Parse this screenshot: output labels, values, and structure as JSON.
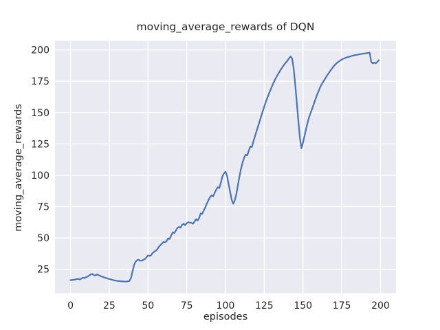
{
  "figure": {
    "title": "moving_average_rewards of DQN",
    "xlabel": "episodes",
    "ylabel": "moving_average_rewards"
  },
  "colors": {
    "figure_bg": "#FFFFFF",
    "panel_bg": "#EAEAF2",
    "grid": "#FFFFFF",
    "line": "#4C72B0",
    "text": "#262626"
  },
  "chart_data": {
    "type": "line",
    "title": "moving_average_rewards of DQN",
    "xlabel": "episodes",
    "ylabel": "moving_average_rewards",
    "grid": true,
    "legend": "none",
    "x_ticks": [
      0,
      25,
      50,
      75,
      100,
      125,
      150,
      175,
      200
    ],
    "y_ticks": [
      25,
      50,
      75,
      100,
      125,
      150,
      175,
      200
    ],
    "xlim": [
      -10,
      210
    ],
    "ylim": [
      5.9,
      207.2
    ],
    "series": [
      {
        "name": "moving_average_rewards",
        "x": [
          0,
          2,
          4,
          5,
          6,
          8,
          9,
          11,
          13,
          14,
          15,
          16,
          17,
          18,
          20,
          22,
          24,
          26,
          28,
          30,
          32,
          34,
          36,
          38,
          39,
          40,
          41,
          42,
          43,
          44,
          45,
          46,
          47,
          48,
          49,
          50,
          51,
          52,
          53,
          54,
          55,
          56,
          57,
          58,
          59,
          60,
          61,
          62,
          63,
          64,
          65,
          66,
          67,
          68,
          69,
          70,
          71,
          72,
          73,
          74,
          75,
          76,
          77,
          78,
          79,
          80,
          81,
          82,
          83,
          84,
          85,
          86,
          87,
          88,
          89,
          90,
          91,
          92,
          93,
          94,
          95,
          96,
          97,
          98,
          99,
          100,
          101,
          102,
          103,
          104,
          105,
          106,
          107,
          108,
          109,
          110,
          111,
          112,
          113,
          114,
          115,
          116,
          117,
          118,
          119,
          120,
          122,
          124,
          126,
          128,
          130,
          132,
          134,
          136,
          138,
          140,
          141,
          142,
          143,
          144,
          145,
          146,
          147,
          148,
          149,
          150,
          151,
          152,
          153,
          154,
          155,
          156,
          157,
          158,
          159,
          160,
          161,
          162,
          163,
          164,
          165,
          166,
          168,
          170,
          172,
          174,
          175,
          176,
          178,
          180,
          182,
          184,
          186,
          188,
          190,
          192,
          193,
          194,
          195,
          196,
          197,
          198,
          199
        ],
        "y": [
          16.3,
          16.6,
          17.1,
          17.3,
          16.9,
          18.3,
          18.0,
          19.2,
          20.9,
          21.3,
          20.4,
          20.1,
          20.9,
          20.4,
          19.3,
          18.4,
          17.6,
          16.9,
          16.2,
          15.8,
          15.5,
          15.3,
          15.2,
          15.6,
          18.0,
          23.0,
          28.5,
          31.0,
          32.3,
          32.6,
          31.8,
          31.9,
          32.5,
          33.2,
          34.5,
          36.0,
          35.7,
          36.2,
          38.0,
          39.0,
          39.8,
          41.0,
          43.0,
          44.2,
          45.5,
          46.9,
          46.5,
          47.5,
          49.7,
          49.2,
          52.0,
          54.5,
          53.9,
          56.0,
          58.0,
          58.8,
          58.2,
          60.5,
          61.3,
          60.2,
          61.8,
          62.5,
          62.3,
          62.0,
          61.3,
          63.0,
          65.0,
          63.9,
          66.0,
          69.5,
          69.2,
          72.0,
          74.5,
          77.5,
          80.0,
          82.5,
          84.0,
          83.2,
          86.0,
          88.5,
          90.5,
          89.8,
          94.0,
          99.0,
          101.5,
          102.8,
          99.5,
          93.0,
          86.5,
          80.5,
          77.3,
          80.0,
          85.0,
          92.0,
          99.0,
          105.0,
          110.0,
          114.0,
          116.5,
          115.8,
          119.5,
          123.0,
          122.5,
          127.0,
          131.0,
          135.0,
          143.0,
          151.0,
          158.5,
          165.0,
          171.0,
          176.5,
          181.0,
          185.0,
          188.5,
          191.5,
          193.3,
          194.8,
          193.0,
          185.0,
          172.0,
          158.0,
          143.0,
          130.0,
          121.5,
          126.0,
          131.5,
          137.0,
          142.0,
          146.5,
          150.0,
          153.5,
          157.0,
          160.5,
          164.0,
          167.0,
          170.0,
          172.5,
          174.5,
          176.5,
          178.5,
          180.5,
          184.0,
          187.3,
          189.8,
          191.5,
          192.3,
          193.0,
          193.9,
          194.7,
          195.4,
          195.9,
          196.4,
          196.9,
          197.2,
          197.6,
          197.8,
          190.5,
          189.2,
          190.0,
          189.3,
          190.5,
          191.8
        ]
      }
    ]
  }
}
